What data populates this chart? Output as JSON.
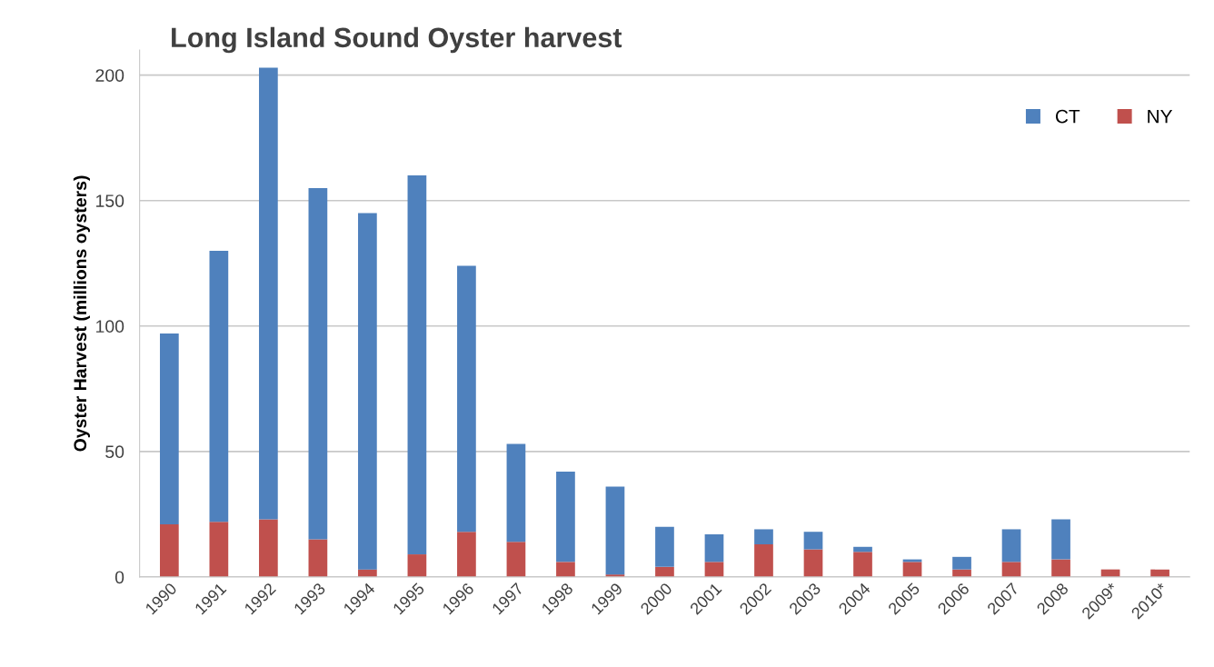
{
  "chart_data": {
    "type": "bar",
    "title": "Long Island Sound Oyster harvest",
    "ylabel": "Oyster Harvest (millions oysters)",
    "categories": [
      "1990",
      "1991",
      "1992",
      "1993",
      "1994",
      "1995",
      "1996",
      "1997",
      "1998",
      "1999",
      "2000",
      "2001",
      "2002",
      "2003",
      "2004",
      "2005",
      "2006",
      "2007",
      "2008",
      "2009*",
      "2010*"
    ],
    "stacked": true,
    "series": [
      {
        "name": "NY",
        "color": "#c0504d",
        "values": [
          21,
          22,
          23,
          15,
          3,
          9,
          18,
          14,
          6,
          1,
          4,
          6,
          13,
          11,
          10,
          6,
          3,
          6,
          7,
          3,
          3
        ]
      },
      {
        "name": "CT",
        "color": "#4f81bd",
        "values": [
          76,
          108,
          180,
          140,
          142,
          151,
          106,
          39,
          36,
          35,
          16,
          11,
          6,
          7,
          2,
          1,
          5,
          13,
          16,
          0,
          0
        ]
      }
    ],
    "ylim": [
      0,
      210
    ],
    "yticks": [
      0,
      50,
      100,
      150,
      200
    ],
    "grid": "y",
    "legend": "top right"
  }
}
